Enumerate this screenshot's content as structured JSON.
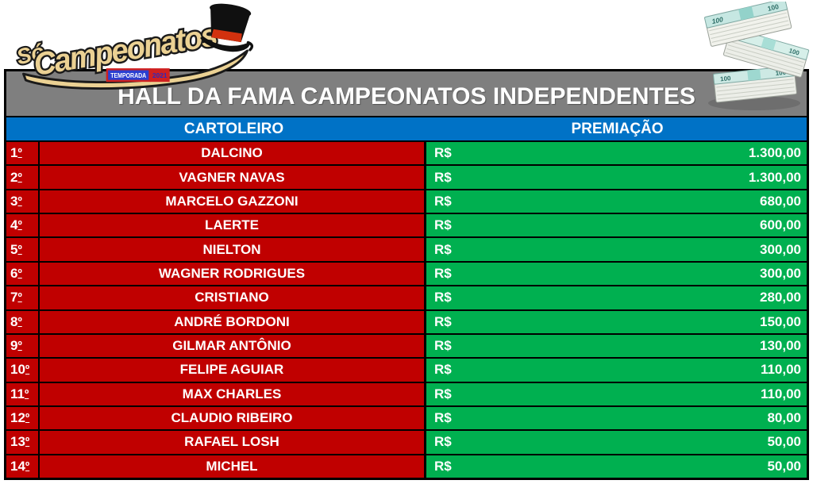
{
  "logo": {
    "line1": "Só",
    "line2": "Campeonatos",
    "badge": "TEMPORADA",
    "badge_year": "2021"
  },
  "header": {
    "title": "HALL DA FAMA CAMPEONATOS INDEPENDENTES"
  },
  "table": {
    "columns": {
      "player": "CARTOLEIRO",
      "prize": "PREMIAÇÃO"
    },
    "currency_symbol": "R$",
    "rows": [
      {
        "rank": "1º",
        "name": "DALCINO",
        "prize": "1.300,00"
      },
      {
        "rank": "2º",
        "name": "VAGNER NAVAS",
        "prize": "1.300,00"
      },
      {
        "rank": "3º",
        "name": "MARCELO GAZZONI",
        "prize": "680,00"
      },
      {
        "rank": "4º",
        "name": "LAERTE",
        "prize": "600,00"
      },
      {
        "rank": "5º",
        "name": "NIELTON",
        "prize": "300,00"
      },
      {
        "rank": "6º",
        "name": "WAGNER RODRIGUES",
        "prize": "300,00"
      },
      {
        "rank": "7º",
        "name": "CRISTIANO",
        "prize": "280,00"
      },
      {
        "rank": "8º",
        "name": "ANDRÉ BORDONI",
        "prize": "150,00"
      },
      {
        "rank": "9º",
        "name": "GILMAR ANTÔNIO",
        "prize": "130,00"
      },
      {
        "rank": "10º",
        "name": "FELIPE AGUIAR",
        "prize": "110,00"
      },
      {
        "rank": "11º",
        "name": "MAX CHARLES",
        "prize": "110,00"
      },
      {
        "rank": "12º",
        "name": "CLAUDIO RIBEIRO",
        "prize": "80,00"
      },
      {
        "rank": "13º",
        "name": "RAFAEL LOSH",
        "prize": "50,00"
      },
      {
        "rank": "14º",
        "name": "MICHEL",
        "prize": "50,00"
      }
    ]
  },
  "money_image": {
    "note_value": "100"
  },
  "colors": {
    "row_red": "#C00000",
    "prize_green": "#00B050",
    "header_blue": "#0072C6",
    "title_gray": "#7F7F7F",
    "logo_tan": "#EBD193"
  }
}
